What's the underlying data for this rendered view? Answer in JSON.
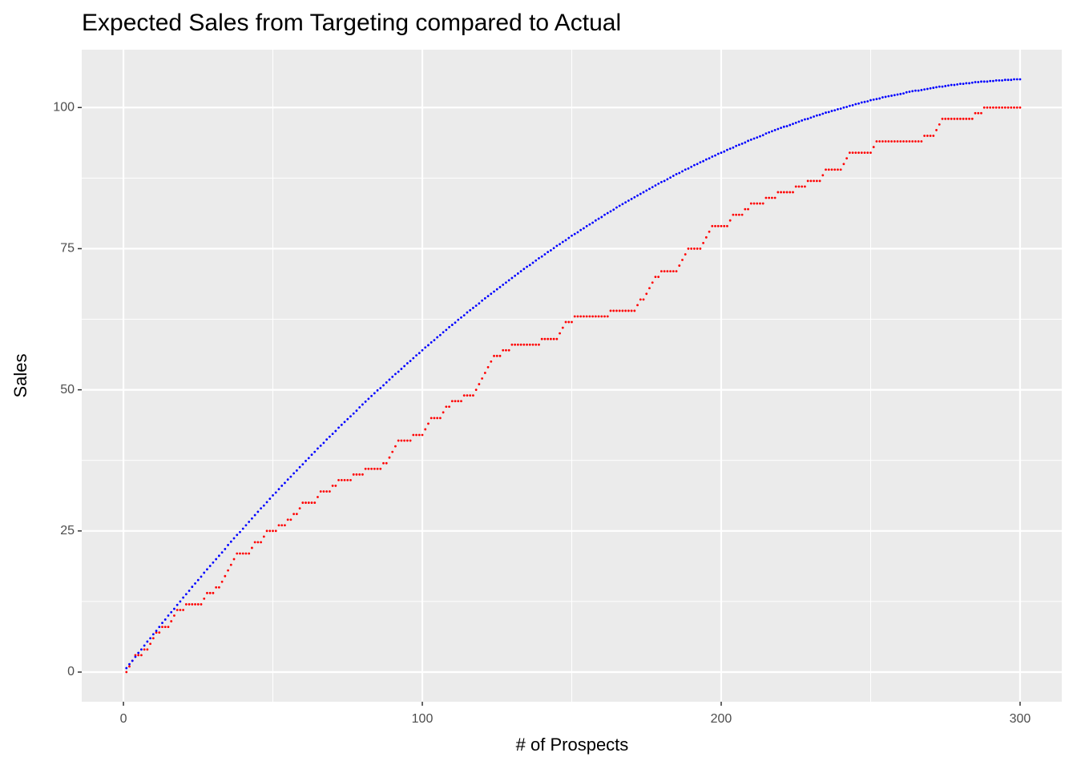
{
  "chart_data": {
    "type": "scatter",
    "title": "Expected Sales from Targeting compared to Actual",
    "x_label": "# of Prospects",
    "y_label": "Sales",
    "xlim": [
      -13.95,
      313.95
    ],
    "ylim": [
      -5.25,
      110.25
    ],
    "xticks": [
      0,
      100,
      200,
      300
    ],
    "yticks": [
      0,
      25,
      50,
      75,
      100
    ],
    "x_minor_ticks": [
      50,
      150,
      250
    ],
    "y_minor_ticks": [
      12.5,
      37.5,
      62.5,
      87.5
    ],
    "grid": true,
    "x": [
      1,
      2,
      3,
      4,
      5,
      6,
      7,
      8,
      9,
      10,
      11,
      12,
      13,
      14,
      15,
      16,
      17,
      18,
      19,
      20,
      21,
      22,
      23,
      24,
      25,
      26,
      27,
      28,
      29,
      30,
      31,
      32,
      33,
      34,
      35,
      36,
      37,
      38,
      39,
      40,
      41,
      42,
      43,
      44,
      45,
      46,
      47,
      48,
      49,
      50,
      51,
      52,
      53,
      54,
      55,
      56,
      57,
      58,
      59,
      60,
      61,
      62,
      63,
      64,
      65,
      66,
      67,
      68,
      69,
      70,
      71,
      72,
      73,
      74,
      75,
      76,
      77,
      78,
      79,
      80,
      81,
      82,
      83,
      84,
      85,
      86,
      87,
      88,
      89,
      90,
      91,
      92,
      93,
      94,
      95,
      96,
      97,
      98,
      99,
      100,
      101,
      102,
      103,
      104,
      105,
      106,
      107,
      108,
      109,
      110,
      111,
      112,
      113,
      114,
      115,
      116,
      117,
      118,
      119,
      120,
      121,
      122,
      123,
      124,
      125,
      126,
      127,
      128,
      129,
      130,
      131,
      132,
      133,
      134,
      135,
      136,
      137,
      138,
      139,
      140,
      141,
      142,
      143,
      144,
      145,
      146,
      147,
      148,
      149,
      150,
      151,
      152,
      153,
      154,
      155,
      156,
      157,
      158,
      159,
      160,
      161,
      162,
      163,
      164,
      165,
      166,
      167,
      168,
      169,
      170,
      171,
      172,
      173,
      174,
      175,
      176,
      177,
      178,
      179,
      180,
      181,
      182,
      183,
      184,
      185,
      186,
      187,
      188,
      189,
      190,
      191,
      192,
      193,
      194,
      195,
      196,
      197,
      198,
      199,
      200,
      201,
      202,
      203,
      204,
      205,
      206,
      207,
      208,
      209,
      210,
      211,
      212,
      213,
      214,
      215,
      216,
      217,
      218,
      219,
      220,
      221,
      222,
      223,
      224,
      225,
      226,
      227,
      228,
      229,
      230,
      231,
      232,
      233,
      234,
      235,
      236,
      237,
      238,
      239,
      240,
      241,
      242,
      243,
      244,
      245,
      246,
      247,
      248,
      249,
      250,
      251,
      252,
      253,
      254,
      255,
      256,
      257,
      258,
      259,
      260,
      261,
      262,
      263,
      264,
      265,
      266,
      267,
      268,
      269,
      270,
      271,
      272,
      273,
      274,
      275,
      276,
      277,
      278,
      279,
      280,
      281,
      282,
      283,
      284,
      285,
      286,
      287,
      288,
      289,
      290,
      291,
      292,
      293,
      294,
      295,
      296,
      297,
      298,
      299,
      300
    ],
    "series": [
      {
        "color": "#ff0000",
        "values": [
          0,
          1,
          2,
          3,
          3,
          3,
          4,
          4,
          5,
          6,
          7,
          7,
          8,
          8,
          8,
          9,
          10,
          11,
          11,
          11,
          12,
          12,
          12,
          12,
          12,
          12,
          13,
          14,
          14,
          14,
          15,
          15,
          16,
          17,
          18,
          19,
          20,
          21,
          21,
          21,
          21,
          21,
          22,
          23,
          23,
          23,
          24,
          25,
          25,
          25,
          25,
          26,
          26,
          26,
          27,
          27,
          28,
          28,
          29,
          30,
          30,
          30,
          30,
          30,
          31,
          32,
          32,
          32,
          32,
          33,
          33,
          34,
          34,
          34,
          34,
          34,
          35,
          35,
          35,
          35,
          36,
          36,
          36,
          36,
          36,
          36,
          37,
          37,
          38,
          39,
          40,
          41,
          41,
          41,
          41,
          41,
          42,
          42,
          42,
          42,
          43,
          44,
          45,
          45,
          45,
          45,
          46,
          47,
          47,
          48,
          48,
          48,
          48,
          49,
          49,
          49,
          49,
          50,
          51,
          52,
          53,
          54,
          55,
          56,
          56,
          56,
          57,
          57,
          57,
          58,
          58,
          58,
          58,
          58,
          58,
          58,
          58,
          58,
          58,
          59,
          59,
          59,
          59,
          59,
          59,
          60,
          61,
          62,
          62,
          62,
          63,
          63,
          63,
          63,
          63,
          63,
          63,
          63,
          63,
          63,
          63,
          63,
          64,
          64,
          64,
          64,
          64,
          64,
          64,
          64,
          64,
          65,
          66,
          66,
          67,
          68,
          69,
          70,
          70,
          71,
          71,
          71,
          71,
          71,
          71,
          72,
          73,
          74,
          75,
          75,
          75,
          75,
          75,
          76,
          77,
          78,
          79,
          79,
          79,
          79,
          79,
          79,
          80,
          81,
          81,
          81,
          81,
          82,
          82,
          83,
          83,
          83,
          83,
          83,
          84,
          84,
          84,
          84,
          85,
          85,
          85,
          85,
          85,
          85,
          86,
          86,
          86,
          86,
          87,
          87,
          87,
          87,
          87,
          88,
          89,
          89,
          89,
          89,
          89,
          89,
          90,
          91,
          92,
          92,
          92,
          92,
          92,
          92,
          92,
          92,
          93,
          94,
          94,
          94,
          94,
          94,
          94,
          94,
          94,
          94,
          94,
          94,
          94,
          94,
          94,
          94,
          94,
          95,
          95,
          95,
          95,
          96,
          97,
          98,
          98,
          98,
          98,
          98,
          98,
          98,
          98,
          98,
          98,
          98,
          99,
          99,
          99,
          100,
          100,
          100,
          100,
          100,
          100,
          100,
          100,
          100,
          100,
          100,
          100,
          100
        ]
      },
      {
        "color": "#0000ff",
        "values": [
          0.7,
          1.4,
          2.0,
          2.7,
          3.4,
          4.0,
          4.7,
          5.4,
          6.0,
          6.7,
          7.3,
          8.0,
          8.7,
          9.3,
          10.0,
          10.6,
          11.2,
          11.9,
          12.5,
          13.2,
          13.8,
          14.4,
          15.1,
          15.7,
          16.3,
          16.9,
          17.6,
          18.2,
          18.8,
          19.4,
          20.0,
          20.6,
          21.2,
          21.8,
          22.5,
          23.1,
          23.7,
          24.3,
          24.8,
          25.4,
          26.0,
          26.6,
          27.2,
          27.8,
          28.4,
          29.0,
          29.5,
          30.1,
          30.7,
          31.3,
          31.8,
          32.4,
          33.0,
          33.5,
          34.1,
          34.6,
          35.2,
          35.7,
          36.3,
          36.8,
          37.4,
          37.9,
          38.5,
          39.0,
          39.6,
          40.1,
          40.6,
          41.2,
          41.7,
          42.2,
          42.7,
          43.3,
          43.8,
          44.3,
          44.8,
          45.3,
          45.8,
          46.3,
          46.9,
          47.4,
          47.9,
          48.4,
          48.9,
          49.4,
          49.9,
          50.3,
          50.8,
          51.3,
          51.8,
          52.3,
          52.8,
          53.2,
          53.7,
          54.2,
          54.7,
          55.1,
          55.6,
          56.1,
          56.5,
          57.0,
          57.5,
          57.9,
          58.4,
          58.8,
          59.3,
          59.7,
          60.2,
          60.6,
          61.1,
          61.5,
          61.9,
          62.4,
          62.8,
          63.2,
          63.7,
          64.1,
          64.5,
          64.9,
          65.3,
          65.8,
          66.2,
          66.6,
          67.0,
          67.4,
          67.8,
          68.2,
          68.6,
          69.0,
          69.4,
          69.8,
          70.2,
          70.6,
          71.0,
          71.4,
          71.8,
          72.1,
          72.5,
          72.9,
          73.3,
          73.6,
          74.0,
          74.4,
          74.7,
          75.1,
          75.5,
          75.8,
          76.2,
          76.5,
          76.9,
          77.3,
          77.6,
          77.9,
          78.3,
          78.6,
          79.0,
          79.3,
          79.6,
          80.0,
          80.3,
          80.6,
          81.0,
          81.3,
          81.6,
          81.9,
          82.3,
          82.6,
          82.9,
          83.2,
          83.5,
          83.8,
          84.1,
          84.4,
          84.7,
          85.0,
          85.3,
          85.6,
          85.9,
          86.2,
          86.5,
          86.8,
          87.0,
          87.3,
          87.6,
          87.9,
          88.2,
          88.4,
          88.7,
          89.0,
          89.2,
          89.5,
          89.8,
          90.0,
          90.3,
          90.5,
          90.8,
          91.0,
          91.3,
          91.5,
          91.8,
          92.0,
          92.2,
          92.5,
          92.7,
          92.9,
          93.2,
          93.4,
          93.6,
          93.8,
          94.1,
          94.3,
          94.5,
          94.7,
          94.9,
          95.1,
          95.4,
          95.6,
          95.8,
          96.0,
          96.2,
          96.4,
          96.6,
          96.7,
          96.9,
          97.1,
          97.3,
          97.5,
          97.7,
          97.9,
          98.0,
          98.2,
          98.4,
          98.6,
          98.7,
          98.9,
          99.1,
          99.2,
          99.4,
          99.5,
          99.7,
          99.8,
          100.0,
          100.1,
          100.3,
          100.4,
          100.6,
          100.7,
          100.9,
          101.0,
          101.1,
          101.3,
          101.4,
          101.5,
          101.6,
          101.8,
          101.9,
          102.0,
          102.1,
          102.2,
          102.3,
          102.4,
          102.5,
          102.7,
          102.8,
          102.9,
          103.0,
          103.0,
          103.1,
          103.2,
          103.3,
          103.4,
          103.5,
          103.6,
          103.7,
          103.7,
          103.8,
          103.9,
          104.0,
          104.0,
          104.1,
          104.2,
          104.2,
          104.3,
          104.3,
          104.4,
          104.5,
          104.5,
          104.6,
          104.6,
          104.6,
          104.7,
          104.7,
          104.8,
          104.8,
          104.8,
          104.9,
          104.9,
          104.9,
          105.0,
          105.0,
          105.0
        ]
      }
    ]
  }
}
